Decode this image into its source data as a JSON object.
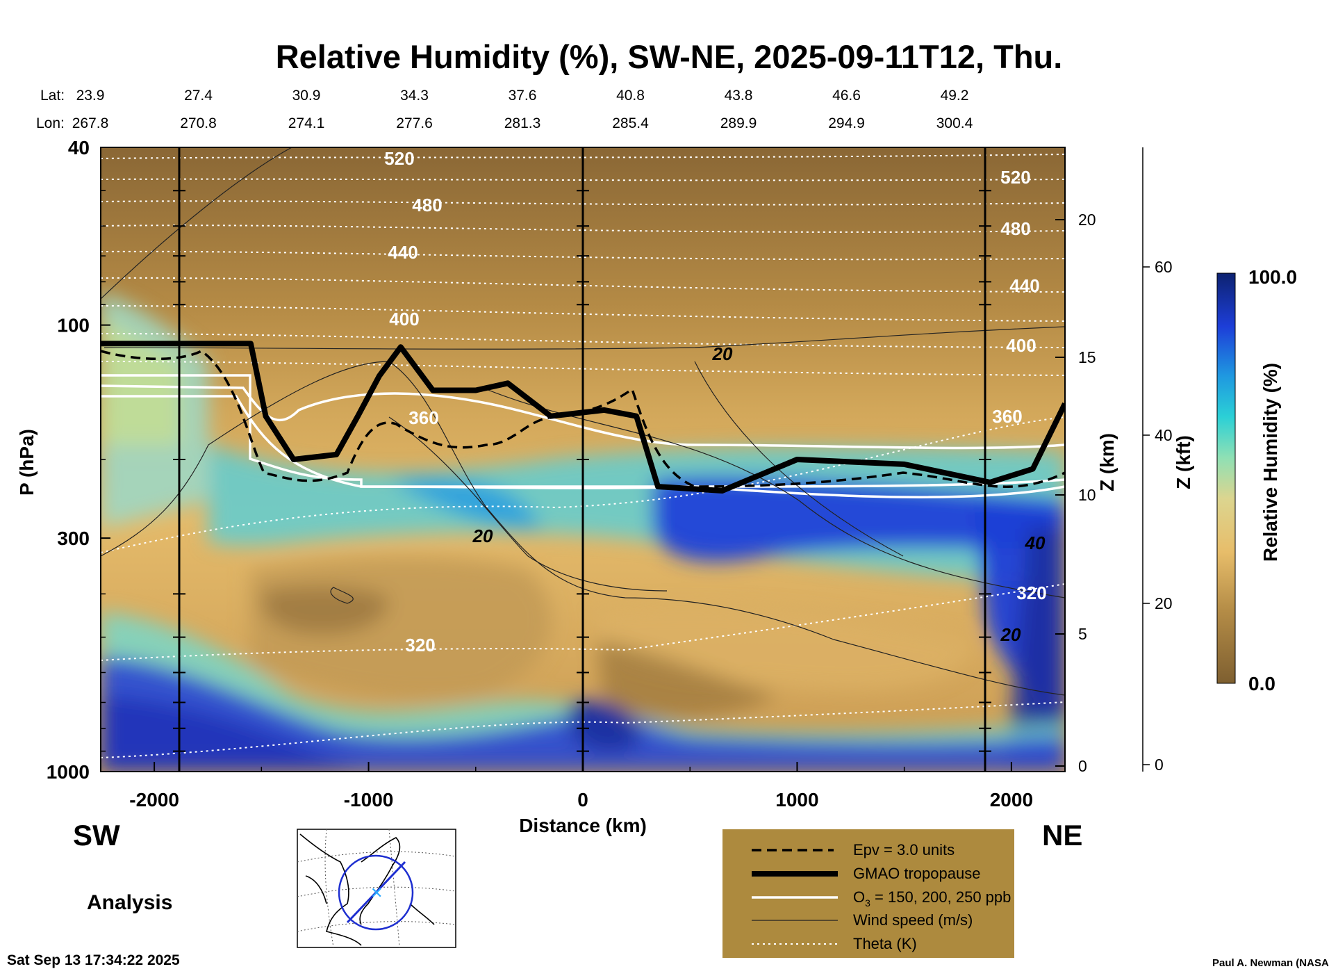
{
  "title": "Relative Humidity (%), SW-NE, 2025-09-11T12, Thu.",
  "lat_label": "Lat:",
  "lon_label": "Lon:",
  "lats": [
    "23.9",
    "27.4",
    "30.9",
    "34.3",
    "37.6",
    "40.8",
    "43.8",
    "46.6",
    "49.2"
  ],
  "lons": [
    "267.8",
    "270.8",
    "274.1",
    "277.6",
    "281.3",
    "285.4",
    "289.9",
    "294.9",
    "300.4"
  ],
  "left_direction": "SW",
  "right_direction": "NE",
  "analysis_label": "Analysis",
  "timestamp": "Sat Sep 13 17:34:22 2025",
  "credit": "Paul A. Newman (NASA",
  "legend": {
    "epv": "Epv = 3.0 units",
    "tropopause": "GMAO tropopause",
    "ozone_prefix": "O",
    "ozone_sub": "3",
    "ozone_suffix": " = 150, 200, 250 ppb",
    "wind": "Wind speed (m/s)",
    "theta": "Theta (K)"
  },
  "colorbar": {
    "max_label": "100.0",
    "min_label": "0.0",
    "label": "Relative Humidity (%)"
  },
  "chart_data": {
    "type": "heatmap",
    "title": "Relative Humidity (%), SW-NE, 2025-09-11T12, Thu.",
    "xlabel": "Distance (km)",
    "ylabel": "P (hPa)",
    "xlim": [
      -2250,
      2250
    ],
    "ylim": [
      1000,
      40
    ],
    "y_scale": "log",
    "x_ticks": [
      -2000,
      -1000,
      0,
      1000,
      2000
    ],
    "x_tick_labels": [
      "-2000",
      "-1000",
      "0",
      "1000",
      "2000"
    ],
    "y_ticks": [
      1000,
      300,
      100,
      40
    ],
    "y_tick_labels": [
      "1000",
      "300",
      "100",
      "40"
    ],
    "z_km_label": "Z (km)",
    "z_km_ticks": [
      "0",
      "5",
      "10",
      "15",
      "20"
    ],
    "z_kft_label": "Z (kft)",
    "z_kft_ticks": [
      "0",
      "20",
      "40",
      "60"
    ],
    "colorbar_range": [
      0,
      100
    ],
    "theta_contour_labels": [
      "520",
      "480",
      "440",
      "400",
      "360",
      "320",
      "520",
      "480",
      "440",
      "400",
      "360",
      "320"
    ],
    "wind_contour_labels": [
      "20",
      "20",
      "40",
      "20"
    ],
    "tropopause": {
      "x": [
        -2250,
        -1550,
        -1480,
        -1350,
        -1150,
        -1050,
        -950,
        -850,
        -700,
        -500,
        -350,
        -150,
        100,
        250,
        350,
        650,
        1000,
        1500,
        1900,
        2100,
        2250
      ],
      "p": [
        110,
        110,
        160,
        200,
        195,
        160,
        130,
        112,
        140,
        140,
        135,
        160,
        155,
        160,
        230,
        235,
        200,
        205,
        225,
        210,
        150
      ]
    }
  }
}
